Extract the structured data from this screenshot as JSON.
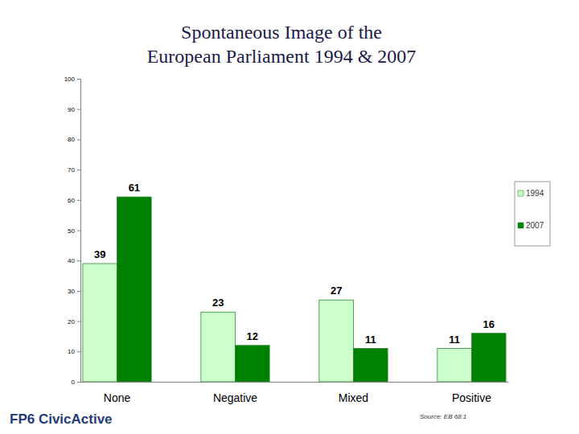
{
  "chart_data": {
    "type": "bar",
    "title": "Spontaneous Image of the European Parliament 1994 & 2007",
    "categories": [
      "None",
      "Negative",
      "Mixed",
      "Positive"
    ],
    "series": [
      {
        "name": "1994",
        "color": "#ccffcc",
        "values": [
          39,
          23,
          27,
          11
        ]
      },
      {
        "name": "2007",
        "color": "#008000",
        "values": [
          61,
          12,
          11,
          16
        ]
      }
    ],
    "ylim": [
      0,
      100
    ],
    "yticks": [
      0,
      10,
      20,
      30,
      40,
      50,
      60,
      70,
      80,
      90,
      100
    ],
    "grid": false,
    "legend": "right",
    "data_labels": true,
    "annotations": [
      "FP6 CivicActive",
      "Source: EB 68.1"
    ]
  }
}
